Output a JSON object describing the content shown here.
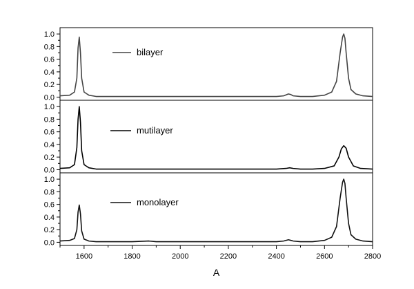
{
  "chart_data": {
    "type": "line",
    "xlabel": "A",
    "xlim": [
      1500,
      2800
    ],
    "x_ticks": [
      1600,
      1800,
      2000,
      2200,
      2400,
      2600,
      2800
    ],
    "panels": [
      {
        "name": "bilayer",
        "ylim": [
          -0.05,
          1.1
        ],
        "y_ticks": [
          0.0,
          0.2,
          0.4,
          0.6,
          0.8,
          1.0
        ],
        "color": "#444444",
        "series": {
          "name": "bilayer",
          "x": [
            1500,
            1540,
            1560,
            1570,
            1575,
            1580,
            1585,
            1590,
            1600,
            1620,
            1650,
            1700,
            1800,
            1870,
            1900,
            2000,
            2100,
            2200,
            2300,
            2400,
            2430,
            2450,
            2460,
            2470,
            2500,
            2550,
            2600,
            2630,
            2650,
            2665,
            2675,
            2680,
            2685,
            2690,
            2700,
            2710,
            2730,
            2760,
            2800
          ],
          "y": [
            0.02,
            0.03,
            0.08,
            0.3,
            0.78,
            0.95,
            0.7,
            0.3,
            0.08,
            0.03,
            0.01,
            0.01,
            0.01,
            0.01,
            0.01,
            0.01,
            0.01,
            0.01,
            0.01,
            0.01,
            0.02,
            0.05,
            0.04,
            0.02,
            0.01,
            0.01,
            0.03,
            0.08,
            0.25,
            0.7,
            0.95,
            1.0,
            0.93,
            0.7,
            0.3,
            0.12,
            0.05,
            0.02,
            0.01
          ]
        }
      },
      {
        "name": "mutilayer",
        "ylim": [
          -0.05,
          1.1
        ],
        "y_ticks": [
          0.0,
          0.2,
          0.4,
          0.6,
          0.8,
          1.0
        ],
        "color": "#000000",
        "series": {
          "name": "mutilayer",
          "x": [
            1500,
            1540,
            1560,
            1570,
            1575,
            1580,
            1585,
            1590,
            1600,
            1620,
            1650,
            1700,
            1800,
            1900,
            2000,
            2100,
            2200,
            2300,
            2400,
            2440,
            2455,
            2470,
            2500,
            2550,
            2600,
            2640,
            2660,
            2670,
            2680,
            2690,
            2700,
            2720,
            2750,
            2800
          ],
          "y": [
            0.02,
            0.03,
            0.08,
            0.35,
            0.8,
            1.0,
            0.75,
            0.3,
            0.08,
            0.03,
            0.01,
            0.01,
            0.01,
            0.01,
            0.01,
            0.01,
            0.01,
            0.01,
            0.01,
            0.02,
            0.03,
            0.02,
            0.01,
            0.01,
            0.02,
            0.06,
            0.2,
            0.33,
            0.38,
            0.34,
            0.2,
            0.06,
            0.02,
            0.01
          ]
        }
      },
      {
        "name": "monolayer",
        "ylim": [
          -0.05,
          1.1
        ],
        "y_ticks": [
          0.0,
          0.2,
          0.4,
          0.6,
          0.8,
          1.0
        ],
        "color": "#111111",
        "series": {
          "name": "monolayer",
          "x": [
            1500,
            1540,
            1560,
            1570,
            1575,
            1580,
            1585,
            1590,
            1600,
            1620,
            1650,
            1700,
            1800,
            1870,
            1900,
            2000,
            2100,
            2200,
            2300,
            2400,
            2430,
            2450,
            2460,
            2470,
            2500,
            2550,
            2600,
            2630,
            2650,
            2665,
            2675,
            2680,
            2685,
            2690,
            2700,
            2710,
            2730,
            2760,
            2800
          ],
          "y": [
            0.02,
            0.03,
            0.06,
            0.2,
            0.48,
            0.59,
            0.45,
            0.18,
            0.05,
            0.02,
            0.01,
            0.01,
            0.01,
            0.02,
            0.01,
            0.01,
            0.01,
            0.01,
            0.01,
            0.01,
            0.02,
            0.04,
            0.03,
            0.02,
            0.01,
            0.01,
            0.03,
            0.08,
            0.25,
            0.7,
            0.95,
            1.0,
            0.93,
            0.7,
            0.3,
            0.12,
            0.05,
            0.02,
            0.01
          ]
        }
      }
    ]
  }
}
